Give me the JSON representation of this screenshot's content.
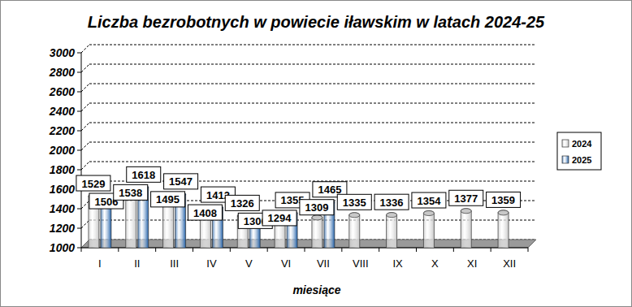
{
  "chart_data": {
    "type": "bar",
    "title": "Liczba bezrobotnych w powiecie iławskim w latach 2024-25",
    "x_label": "miesiące",
    "categories": [
      "I",
      "II",
      "III",
      "IV",
      "V",
      "VI",
      "VII",
      "VIII",
      "IX",
      "X",
      "XI",
      "XII"
    ],
    "series": [
      {
        "name": "2024",
        "color": "#c8c8c8",
        "values": [
          1529,
          1538,
          1495,
          1408,
          1326,
          1294,
          1309,
          1335,
          1336,
          1354,
          1377,
          1359
        ]
      },
      {
        "name": "2025",
        "color": "#1f5fa8",
        "values": [
          1506,
          1618,
          1547,
          1412,
          1306,
          1355,
          1465,
          null,
          null,
          null,
          null,
          null
        ]
      }
    ],
    "ylim": [
      1000,
      3000
    ],
    "yticks": [
      1000,
      1200,
      1400,
      1600,
      1800,
      2000,
      2200,
      2400,
      2600,
      2800,
      3000
    ],
    "grid": true,
    "legend": "right",
    "data_labels": true
  }
}
